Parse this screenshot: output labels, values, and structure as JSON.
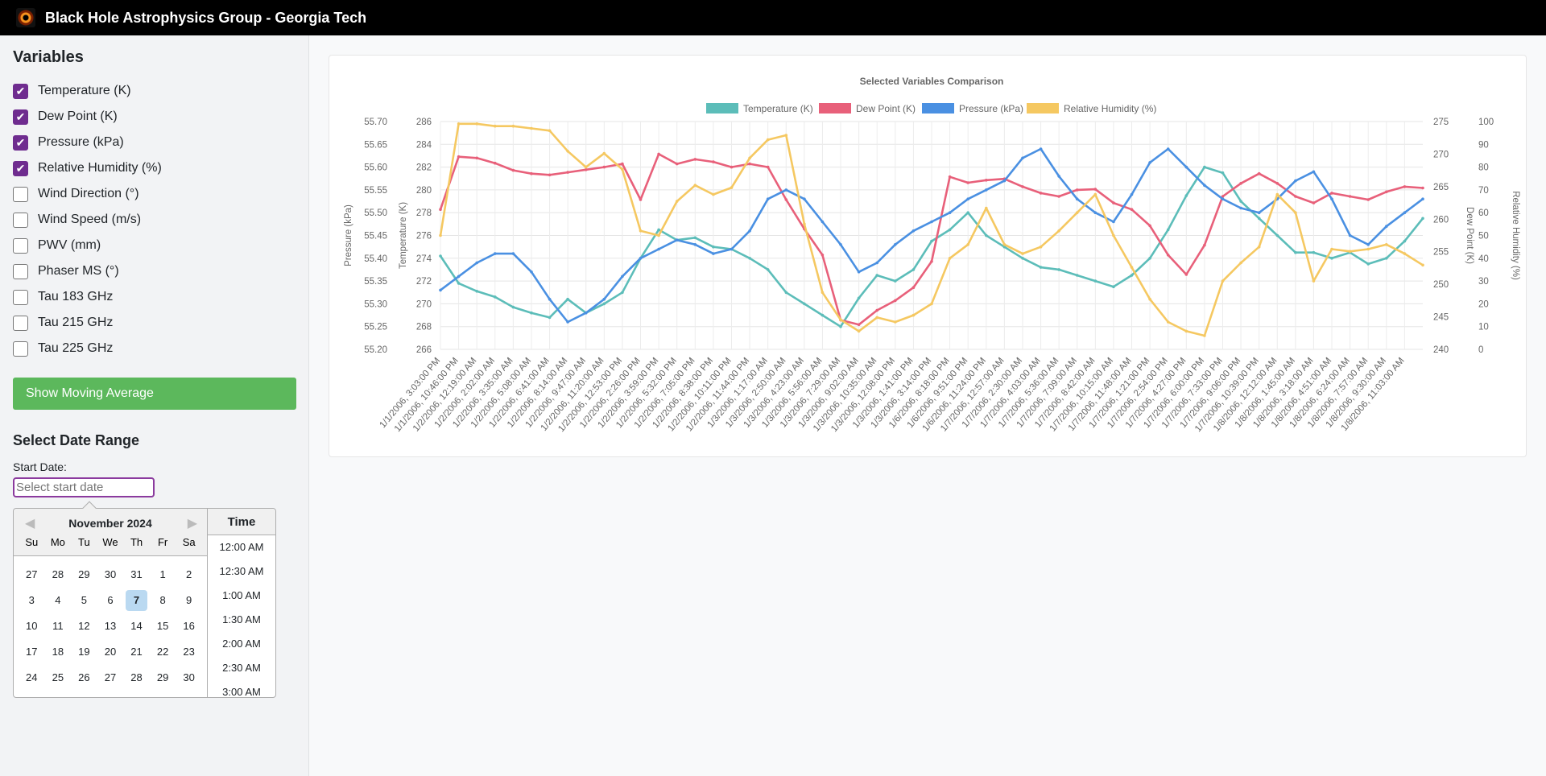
{
  "app": {
    "title": "Black Hole Astrophysics Group - Georgia Tech"
  },
  "sidebar": {
    "heading": "Variables",
    "variables": [
      {
        "label": "Temperature (K)",
        "checked": true
      },
      {
        "label": "Dew Point (K)",
        "checked": true
      },
      {
        "label": "Pressure (kPa)",
        "checked": true
      },
      {
        "label": "Relative Humidity (%)",
        "checked": true
      },
      {
        "label": "Wind Direction (°)",
        "checked": false
      },
      {
        "label": "Wind Speed (m/s)",
        "checked": false
      },
      {
        "label": "PWV (mm)",
        "checked": false
      },
      {
        "label": "Phaser MS (°)",
        "checked": false
      },
      {
        "label": "Tau 183 GHz",
        "checked": false
      },
      {
        "label": "Tau 215 GHz",
        "checked": false
      },
      {
        "label": "Tau 225 GHz",
        "checked": false
      }
    ],
    "moving_average_label": "Show Moving Average",
    "date_range_heading": "Select Date Range",
    "start_date_label": "Start Date:",
    "start_date_placeholder": "Select start date"
  },
  "datepicker": {
    "month": "November 2024",
    "day_names": [
      "Su",
      "Mo",
      "Tu",
      "We",
      "Th",
      "Fr",
      "Sa"
    ],
    "weeks": [
      [
        "27",
        "28",
        "29",
        "30",
        "31",
        "1",
        "2"
      ],
      [
        "3",
        "4",
        "5",
        "6",
        "7",
        "8",
        "9"
      ],
      [
        "10",
        "11",
        "12",
        "13",
        "14",
        "15",
        "16"
      ],
      [
        "17",
        "18",
        "19",
        "20",
        "21",
        "22",
        "23"
      ],
      [
        "24",
        "25",
        "26",
        "27",
        "28",
        "29",
        "30"
      ]
    ],
    "selected_day": "7",
    "time_header": "Time",
    "times": [
      "12:00 AM",
      "12:30 AM",
      "1:00 AM",
      "1:30 AM",
      "2:00 AM",
      "2:30 AM",
      "3:00 AM"
    ]
  },
  "chart_data": {
    "type": "line",
    "title": "Selected Variables Comparison",
    "x": [
      "1/1/2006, 3:03:00 PM",
      "1/1/2006, 10:46:00 PM",
      "1/2/2006, 12:19:00 AM",
      "1/2/2006, 2:02:00 AM",
      "1/2/2006, 3:35:00 AM",
      "1/2/2006, 5:08:00 AM",
      "1/2/2006, 6:41:00 AM",
      "1/2/2006, 8:14:00 AM",
      "1/2/2006, 9:47:00 AM",
      "1/2/2006, 11:20:00 AM",
      "1/2/2006, 12:53:00 PM",
      "1/2/2006, 2:26:00 PM",
      "1/2/2006, 3:59:00 PM",
      "1/2/2006, 5:32:00 PM",
      "1/2/2006, 7:05:00 PM",
      "1/2/2006, 8:38:00 PM",
      "1/2/2006, 10:11:00 PM",
      "1/2/2006, 11:44:00 PM",
      "1/3/2006, 1:17:00 AM",
      "1/3/2006, 2:50:00 AM",
      "1/3/2006, 4:23:00 AM",
      "1/3/2006, 5:56:00 AM",
      "1/3/2006, 7:29:00 AM",
      "1/3/2006, 9:02:00 AM",
      "1/3/2006, 10:35:00 AM",
      "1/3/2006, 12:08:00 PM",
      "1/3/2006, 1:41:00 PM",
      "1/3/2006, 3:14:00 PM",
      "1/6/2006, 8:18:00 PM",
      "1/6/2006, 9:51:00 PM",
      "1/6/2006, 11:24:00 PM",
      "1/7/2006, 12:57:00 AM",
      "1/7/2006, 2:30:00 AM",
      "1/7/2006, 4:03:00 AM",
      "1/7/2006, 5:36:00 AM",
      "1/7/2006, 7:09:00 AM",
      "1/7/2006, 8:42:00 AM",
      "1/7/2006, 10:15:00 AM",
      "1/7/2006, 11:48:00 AM",
      "1/7/2006, 1:21:00 PM",
      "1/7/2006, 2:54:00 PM",
      "1/7/2006, 4:27:00 PM",
      "1/7/2006, 6:00:00 PM",
      "1/7/2006, 7:33:00 PM",
      "1/7/2006, 9:06:00 PM",
      "1/7/2006, 10:39:00 PM",
      "1/8/2006, 12:12:00 AM",
      "1/8/2006, 1:45:00 AM",
      "1/8/2006, 3:18:00 AM",
      "1/8/2006, 4:51:00 AM",
      "1/8/2006, 6:24:00 AM",
      "1/8/2006, 7:57:00 AM",
      "1/8/2006, 9:30:00 AM",
      "1/8/2006, 11:03:00 AM",
      "1/8/2006, 12:36:00 PM"
    ],
    "x_tick_labels": [
      "1/1/2006, 3:03:00 PM",
      "1/1/2006, 10:46:00 PM",
      "1/2/2006, 12:19:00 AM",
      "1/2/2006, 2:02:00 AM",
      "1/2/2006, 3:35:00 AM",
      "1/2/2006, 5:08:00 AM",
      "1/2/2006, 6:41:00 AM",
      "1/2/2006, 8:14:00 AM",
      "1/2/2006, 9:47:00 AM",
      "1/2/2006, 11:20:00 AM",
      "1/2/2006, 12:53:00 PM",
      "1/2/2006, 2:26:00 PM",
      "1/2/2006, 3:59:00 PM",
      "1/2/2006, 5:32:00 PM",
      "1/2/2006, 7:05:00 PM",
      "1/2/2006, 8:38:00 PM",
      "1/2/2006, 10:11:00 PM",
      "1/2/2006, 11:44:00 PM",
      "1/3/2006, 1:17:00 AM",
      "1/3/2006, 2:50:00 AM",
      "1/3/2006, 4:23:00 AM",
      "1/3/2006, 5:56:00 AM",
      "1/3/2006, 7:29:00 AM",
      "1/3/2006, 9:02:00 AM",
      "1/3/2006, 10:35:00 AM",
      "1/3/2006, 12:08:00 PM",
      "1/3/2006, 1:41:00 PM",
      "1/3/2006, 3:14:00 PM",
      "1/6/2006, 8:18:00 PM",
      "1/6/2006, 9:51:00 PM",
      "1/6/2006, 11:24:00 PM",
      "1/7/2006, 12:57:00 AM",
      "1/7/2006, 2:30:00 AM",
      "1/7/2006, 4:03:00 AM",
      "1/7/2006, 5:36:00 AM",
      "1/7/2006, 7:09:00 AM",
      "1/7/2006, 8:42:00 AM",
      "1/7/2006, 10:15:00 AM",
      "1/7/2006, 11:48:00 AM",
      "1/7/2006, 1:21:00 PM",
      "1/7/2006, 2:54:00 PM",
      "1/7/2006, 4:27:00 PM",
      "1/7/2006, 6:00:00 PM",
      "1/7/2006, 7:33:00 PM",
      "1/7/2006, 9:06:00 PM",
      "1/7/2006, 10:39:00 PM",
      "1/8/2006, 12:12:00 AM",
      "1/8/2006, 1:45:00 AM",
      "1/8/2006, 3:18:00 AM",
      "1/8/2006, 4:51:00 AM",
      "1/8/2006, 6:24:00 AM",
      "1/8/2006, 7:57:00 AM",
      "1/8/2006, 9:30:00 AM",
      "1/8/2006, 11:03:00 AM"
    ],
    "legend_position": "top",
    "grid": true,
    "axes": {
      "pressure": {
        "label": "Pressure (kPa)",
        "side": "left",
        "min": 55.2,
        "max": 55.7,
        "ticks": [
          "55.70",
          "55.65",
          "55.60",
          "55.55",
          "55.50",
          "55.45",
          "55.40",
          "55.35",
          "55.30",
          "55.25",
          "55.20"
        ]
      },
      "temperature": {
        "label": "Temperature (K)",
        "side": "left",
        "min": 266,
        "max": 286,
        "ticks": [
          "286",
          "284",
          "282",
          "280",
          "278",
          "276",
          "274",
          "272",
          "270",
          "268",
          "266"
        ]
      },
      "dewpoint": {
        "label": "Dew Point (K)",
        "side": "right",
        "min": 240,
        "max": 275,
        "ticks": [
          "275",
          "270",
          "265",
          "260",
          "255",
          "250",
          "245",
          "240"
        ]
      },
      "humidity": {
        "label": "Relative Humidity (%)",
        "side": "right",
        "min": 0,
        "max": 100,
        "ticks": [
          "100",
          "90",
          "80",
          "70",
          "60",
          "50",
          "40",
          "30",
          "20",
          "10",
          "0"
        ]
      }
    },
    "series": [
      {
        "name": "Temperature (K)",
        "axis": "temperature",
        "color": "#5cbdb9",
        "values": [
          274.2,
          271.8,
          271.1,
          270.6,
          269.7,
          269.2,
          268.8,
          270.4,
          269.2,
          270.0,
          271.0,
          274.0,
          276.5,
          275.6,
          275.8,
          275.0,
          274.8,
          274.0,
          273.0,
          271.0,
          270.0,
          269.0,
          268.0,
          270.5,
          272.5,
          272.0,
          273.0,
          275.5,
          276.5,
          278.0,
          276.0,
          275.0,
          274.0,
          273.2,
          273.0,
          272.5,
          272.0,
          271.5,
          272.5,
          274.0,
          276.5,
          279.5,
          282.0,
          281.5,
          279.0,
          277.5,
          276.0,
          274.5,
          274.5,
          274.0,
          274.5,
          273.5,
          274.0,
          275.5,
          277.5
        ]
      },
      {
        "name": "Dew Point (K)",
        "axis": "dewpoint",
        "color": "#e8607a",
        "values": [
          261.5,
          269.6,
          269.4,
          268.6,
          267.5,
          267.0,
          266.8,
          267.2,
          267.6,
          268.0,
          268.5,
          263.0,
          270.0,
          268.5,
          269.2,
          268.8,
          268.0,
          268.5,
          268.0,
          263.0,
          258.5,
          254.5,
          244.5,
          243.8,
          246.0,
          247.5,
          249.5,
          253.5,
          266.5,
          265.6,
          266.0,
          266.2,
          265.0,
          264.0,
          263.5,
          264.5,
          264.6,
          262.5,
          261.5,
          259.0,
          254.5,
          251.5,
          256.0,
          263.5,
          265.5,
          267.0,
          265.5,
          263.5,
          262.5,
          264.0,
          263.5,
          263.0,
          264.2,
          265.0,
          264.8
        ]
      },
      {
        "name": "Pressure (kPa)",
        "axis": "pressure",
        "color": "#4a90e2",
        "values": [
          55.33,
          55.36,
          55.39,
          55.41,
          55.41,
          55.37,
          55.31,
          55.26,
          55.28,
          55.31,
          55.36,
          55.4,
          55.42,
          55.44,
          55.43,
          55.41,
          55.42,
          55.46,
          55.53,
          55.55,
          55.53,
          55.48,
          55.43,
          55.37,
          55.39,
          55.43,
          55.46,
          55.48,
          55.5,
          55.53,
          55.55,
          55.57,
          55.62,
          55.64,
          55.58,
          55.53,
          55.5,
          55.48,
          55.54,
          55.61,
          55.64,
          55.6,
          55.56,
          55.53,
          55.51,
          55.5,
          55.53,
          55.57,
          55.59,
          55.53,
          55.45,
          55.43,
          55.47,
          55.5,
          55.53
        ]
      },
      {
        "name": "Relative Humidity (%)",
        "axis": "humidity",
        "color": "#f5c861",
        "values": [
          50,
          99,
          99,
          98,
          98,
          97,
          96,
          87,
          80,
          86,
          79,
          52,
          50,
          65,
          72,
          68,
          71,
          84,
          92,
          94,
          55,
          25,
          13,
          8,
          14,
          12,
          15,
          20,
          40,
          46,
          62,
          46,
          42,
          45,
          52,
          60,
          68,
          50,
          36,
          22,
          12,
          8,
          6,
          30,
          38,
          45,
          68,
          60,
          30,
          44,
          43,
          44,
          46,
          42,
          37
        ]
      }
    ]
  }
}
